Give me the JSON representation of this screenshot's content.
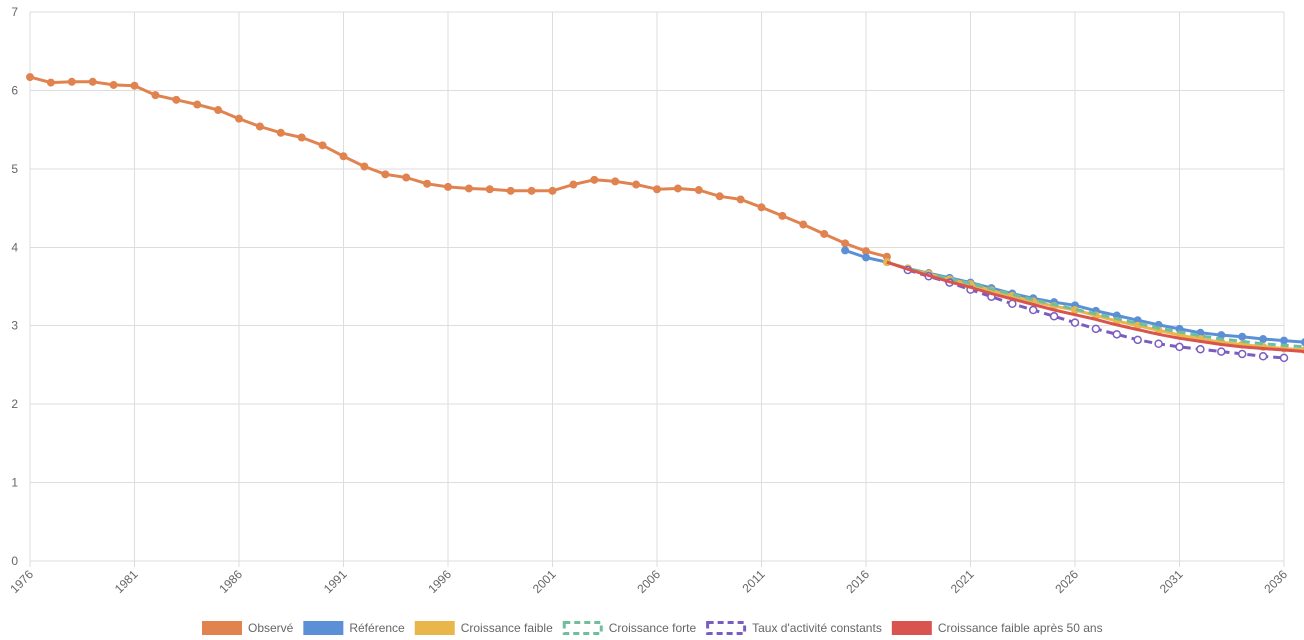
{
  "chart_data": {
    "type": "line",
    "x_start": 1976,
    "x_end": 2036,
    "x_tick_labels": [
      "1976",
      "1981",
      "1986",
      "1991",
      "1996",
      "2001",
      "2006",
      "2011",
      "2016",
      "2021",
      "2026",
      "2031",
      "2036"
    ],
    "y_tick_labels": [
      "0",
      "1",
      "2",
      "3",
      "4",
      "5",
      "6",
      "7"
    ],
    "ylim": [
      0,
      7
    ],
    "grid": true,
    "legend_position": "bottom",
    "series": [
      {
        "name": "Observé",
        "color": "#e0834f",
        "dashed": false,
        "markers": "filled",
        "x_start": 1976,
        "values": [
          6.17,
          6.1,
          6.11,
          6.11,
          6.07,
          6.06,
          5.94,
          5.88,
          5.82,
          5.75,
          5.64,
          5.54,
          5.46,
          5.4,
          5.3,
          5.16,
          5.03,
          4.93,
          4.89,
          4.81,
          4.77,
          4.75,
          4.74,
          4.72,
          4.72,
          4.72,
          4.8,
          4.86,
          4.84,
          4.8,
          4.74,
          4.75,
          4.73,
          4.65,
          4.61,
          4.51,
          4.4,
          4.29,
          4.17,
          4.05,
          3.95,
          3.88
        ]
      },
      {
        "name": "Référence",
        "color": "#5b8fd6",
        "dashed": false,
        "markers": "filled",
        "x_start": 2015,
        "values": [
          3.96,
          3.87,
          3.81,
          3.73,
          3.67,
          3.61,
          3.55,
          3.48,
          3.41,
          3.35,
          3.3,
          3.26,
          3.19,
          3.13,
          3.07,
          3.01,
          2.96,
          2.91,
          2.88,
          2.86,
          2.83,
          2.81,
          2.79
        ]
      },
      {
        "name": "Croissance faible",
        "color": "#e8b64a",
        "dashed": false,
        "markers": "filled",
        "x_start": 2017,
        "values": [
          3.81,
          3.73,
          3.66,
          3.59,
          3.53,
          3.45,
          3.38,
          3.31,
          3.25,
          3.2,
          3.13,
          3.06,
          3.0,
          2.94,
          2.88,
          2.83,
          2.79,
          2.76,
          2.73,
          2.71,
          2.69
        ]
      },
      {
        "name": "Croissance forte",
        "color": "#6fbf9c",
        "dashed": true,
        "markers": "none",
        "x_start": 2017,
        "values": [
          3.81,
          3.73,
          3.66,
          3.6,
          3.54,
          3.47,
          3.4,
          3.33,
          3.27,
          3.21,
          3.15,
          3.09,
          3.03,
          2.97,
          2.92,
          2.87,
          2.83,
          2.8,
          2.77,
          2.75,
          2.73
        ]
      },
      {
        "name": "Taux d'activité constants",
        "color": "#7b5cc0",
        "dashed": true,
        "markers": "hollow",
        "x_start": 2018,
        "values": [
          3.71,
          3.63,
          3.55,
          3.46,
          3.37,
          3.28,
          3.2,
          3.12,
          3.04,
          2.96,
          2.89,
          2.82,
          2.77,
          2.73,
          2.7,
          2.67,
          2.64,
          2.61,
          2.59
        ]
      },
      {
        "name": "Croissance faible après 50 ans",
        "color": "#d9534f",
        "dashed": false,
        "markers": "none",
        "x_start": 2017,
        "values": [
          3.81,
          3.72,
          3.64,
          3.56,
          3.49,
          3.41,
          3.34,
          3.27,
          3.2,
          3.14,
          3.08,
          3.01,
          2.95,
          2.89,
          2.84,
          2.8,
          2.76,
          2.73,
          2.71,
          2.69,
          2.67
        ]
      }
    ]
  }
}
